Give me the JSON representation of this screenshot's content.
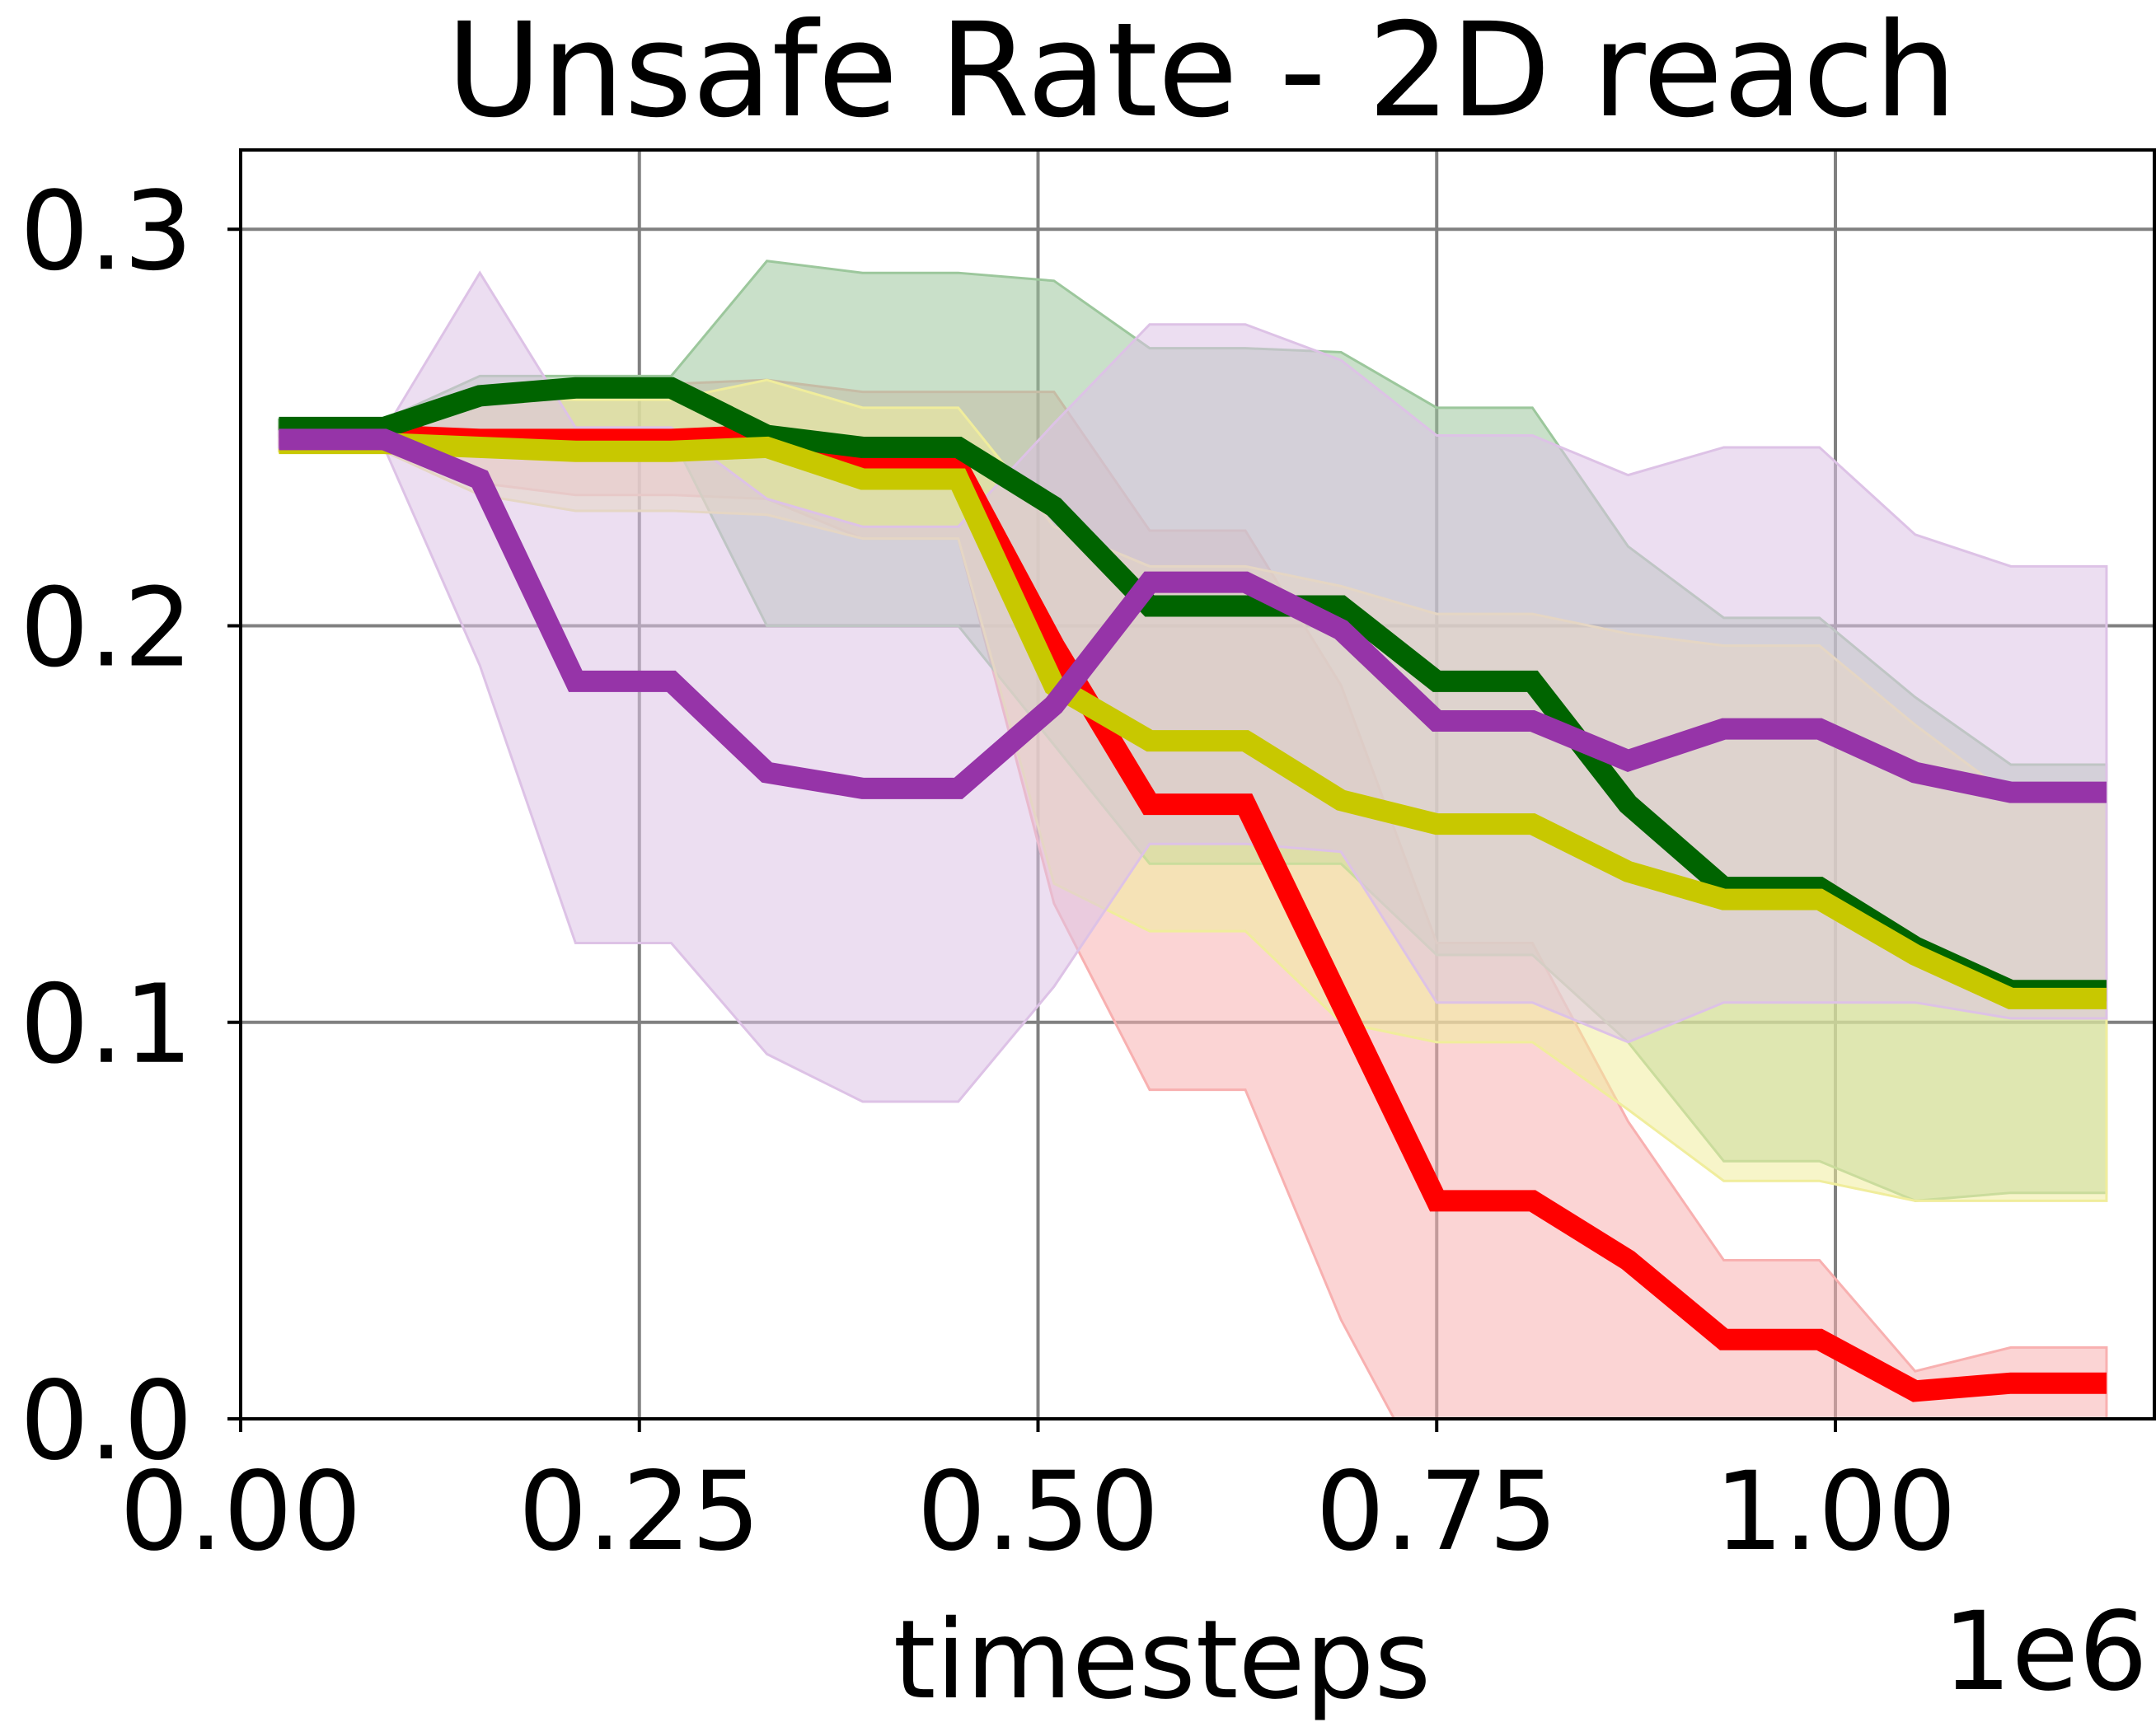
{
  "chart_data": {
    "type": "line",
    "title": "Unsafe Rate - 2D reach",
    "xlabel": "timesteps",
    "ylabel": "",
    "x_offset_label": "1e6",
    "xlim": [
      0.0,
      1.2
    ],
    "ylim": [
      0.0,
      0.32
    ],
    "xticks": [
      0.0,
      0.25,
      0.5,
      0.75,
      1.0
    ],
    "xtick_labels": [
      "0.00",
      "0.25",
      "0.50",
      "0.75",
      "1.00"
    ],
    "yticks": [
      0.0,
      0.1,
      0.2,
      0.3
    ],
    "ytick_labels": [
      "0.0",
      "0.1",
      "0.2",
      "0.3"
    ],
    "grid": true,
    "legend": "none",
    "x": [
      0.024,
      0.09,
      0.15,
      0.21,
      0.27,
      0.33,
      0.39,
      0.45,
      0.51,
      0.57,
      0.63,
      0.69,
      0.75,
      0.81,
      0.87,
      0.93,
      0.99,
      1.05,
      1.11,
      1.17
    ],
    "series": [
      {
        "color": "#ff0000",
        "fill": "#f8b0b0",
        "values": [
          0.248,
          0.248,
          0.247,
          0.247,
          0.247,
          0.248,
          0.24,
          0.24,
          0.195,
          0.155,
          0.155,
          0.105,
          0.055,
          0.055,
          0.04,
          0.02,
          0.02,
          0.007,
          0.009,
          0.009
        ],
        "lower": [
          0.246,
          0.246,
          0.236,
          0.233,
          0.233,
          0.232,
          0.222,
          0.222,
          0.13,
          0.083,
          0.083,
          0.025,
          -0.02,
          -0.02,
          -0.02,
          -0.025,
          -0.025,
          -0.02,
          -0.01,
          -0.01
        ],
        "upper": [
          0.25,
          0.25,
          0.256,
          0.261,
          0.261,
          0.262,
          0.259,
          0.259,
          0.259,
          0.224,
          0.224,
          0.185,
          0.12,
          0.12,
          0.075,
          0.04,
          0.04,
          0.012,
          0.018,
          0.018
        ]
      },
      {
        "color": "#006400",
        "fill": "#9cc79c",
        "values": [
          0.25,
          0.25,
          0.258,
          0.26,
          0.26,
          0.248,
          0.245,
          0.245,
          0.23,
          0.205,
          0.205,
          0.205,
          0.186,
          0.186,
          0.155,
          0.134,
          0.134,
          0.119,
          0.108,
          0.108
        ],
        "lower": [
          0.248,
          0.248,
          0.248,
          0.248,
          0.248,
          0.2,
          0.2,
          0.2,
          0.17,
          0.14,
          0.14,
          0.14,
          0.117,
          0.117,
          0.095,
          0.065,
          0.065,
          0.055,
          0.057,
          0.057
        ],
        "upper": [
          0.252,
          0.252,
          0.263,
          0.263,
          0.263,
          0.292,
          0.289,
          0.289,
          0.287,
          0.27,
          0.27,
          0.269,
          0.255,
          0.255,
          0.22,
          0.202,
          0.202,
          0.182,
          0.165,
          0.165
        ]
      },
      {
        "color": "#c8c800",
        "fill": "#f0ed9c",
        "values": [
          0.246,
          0.246,
          0.245,
          0.244,
          0.244,
          0.245,
          0.237,
          0.237,
          0.185,
          0.171,
          0.171,
          0.156,
          0.15,
          0.15,
          0.138,
          0.131,
          0.131,
          0.117,
          0.106,
          0.106
        ],
        "lower": [
          0.244,
          0.244,
          0.233,
          0.229,
          0.229,
          0.228,
          0.222,
          0.222,
          0.135,
          0.123,
          0.123,
          0.1,
          0.095,
          0.095,
          0.078,
          0.06,
          0.06,
          0.055,
          0.055,
          0.055
        ],
        "upper": [
          0.248,
          0.248,
          0.258,
          0.257,
          0.257,
          0.262,
          0.255,
          0.255,
          0.225,
          0.215,
          0.215,
          0.21,
          0.203,
          0.203,
          0.198,
          0.195,
          0.195,
          0.175,
          0.157,
          0.157
        ]
      },
      {
        "color": "#9634a8",
        "fill": "#ddc2e6",
        "values": [
          0.247,
          0.247,
          0.237,
          0.186,
          0.186,
          0.163,
          0.159,
          0.159,
          0.18,
          0.211,
          0.211,
          0.199,
          0.176,
          0.176,
          0.166,
          0.174,
          0.174,
          0.163,
          0.158,
          0.158
        ],
        "lower": [
          0.245,
          0.245,
          0.19,
          0.12,
          0.12,
          0.092,
          0.08,
          0.08,
          0.109,
          0.145,
          0.145,
          0.143,
          0.105,
          0.105,
          0.095,
          0.105,
          0.105,
          0.105,
          0.101,
          0.101
        ],
        "upper": [
          0.249,
          0.249,
          0.289,
          0.25,
          0.25,
          0.232,
          0.225,
          0.225,
          0.251,
          0.276,
          0.276,
          0.267,
          0.248,
          0.248,
          0.238,
          0.245,
          0.245,
          0.223,
          0.215,
          0.215
        ]
      }
    ]
  }
}
